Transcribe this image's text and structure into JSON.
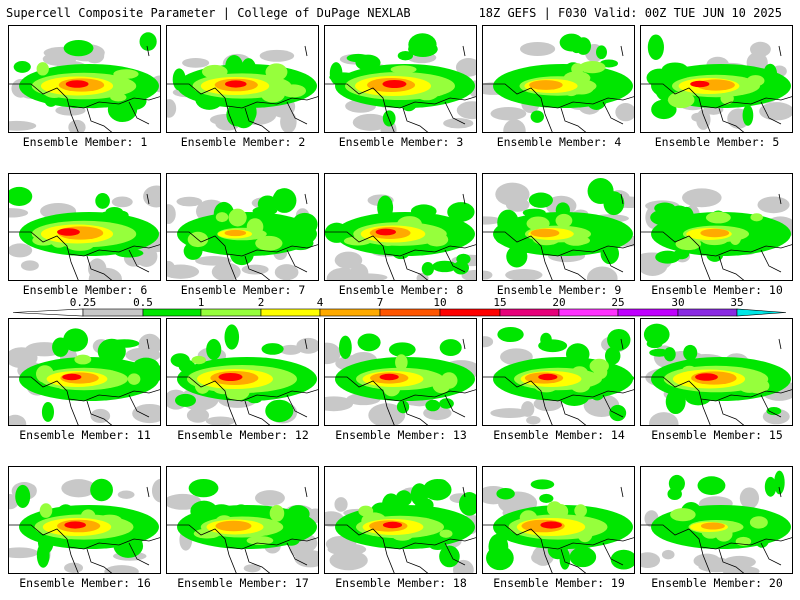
{
  "header": {
    "title": "Supercell Composite Parameter | College of DuPage NEXLAB",
    "run_info": "18Z GEFS | F030 Valid: 00Z TUE JUN 10 2025"
  },
  "legend": {
    "ticks": [
      "0.25",
      "0.5",
      "1",
      "2",
      "4",
      "7",
      "10",
      "15",
      "20",
      "25",
      "30",
      "35"
    ],
    "colors": [
      "#c8c8c8",
      "#00e600",
      "#96ff3c",
      "#ffff00",
      "#ffaa00",
      "#ff5500",
      "#ff0000",
      "#e6007a",
      "#ff32ff",
      "#c000ff",
      "#8a2be2",
      "#b450e6",
      "#00e6e6"
    ]
  },
  "members": [
    {
      "label": "Ensemble Member: 1",
      "intensity": 0.95
    },
    {
      "label": "Ensemble Member: 2",
      "intensity": 0.9
    },
    {
      "label": "Ensemble Member: 3",
      "intensity": 1.0
    },
    {
      "label": "Ensemble Member: 4",
      "intensity": 0.7
    },
    {
      "label": "Ensemble Member: 5",
      "intensity": 0.8
    },
    {
      "label": "Ensemble Member: 6",
      "intensity": 0.95
    },
    {
      "label": "Ensemble Member: 7",
      "intensity": 0.45
    },
    {
      "label": "Ensemble Member: 8",
      "intensity": 0.85
    },
    {
      "label": "Ensemble Member: 9",
      "intensity": 0.6
    },
    {
      "label": "Ensemble Member: 10",
      "intensity": 0.6
    },
    {
      "label": "Ensemble Member: 11",
      "intensity": 0.8
    },
    {
      "label": "Ensemble Member: 12",
      "intensity": 1.0
    },
    {
      "label": "Ensemble Member: 13",
      "intensity": 0.8
    },
    {
      "label": "Ensemble Member: 14",
      "intensity": 0.8
    },
    {
      "label": "Ensemble Member: 15",
      "intensity": 0.95
    },
    {
      "label": "Ensemble Member: 16",
      "intensity": 0.9
    },
    {
      "label": "Ensemble Member: 17",
      "intensity": 0.75
    },
    {
      "label": "Ensemble Member: 18",
      "intensity": 0.8
    },
    {
      "label": "Ensemble Member: 19",
      "intensity": 0.9
    },
    {
      "label": "Ensemble Member: 20",
      "intensity": 0.5
    }
  ]
}
